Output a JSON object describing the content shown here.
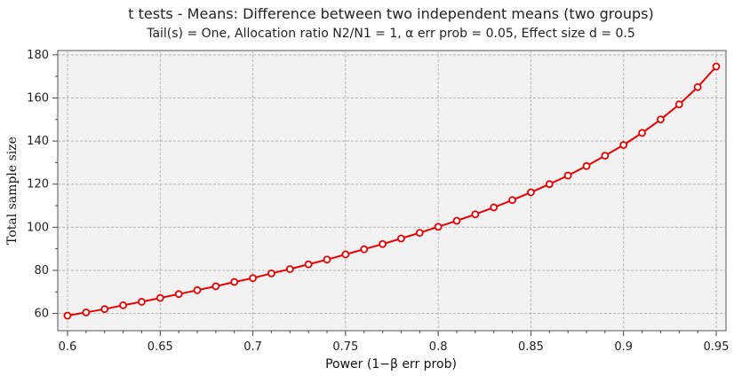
{
  "chart_data": {
    "type": "line",
    "title": "t tests - Means: Difference between two independent means (two groups)",
    "subtitle": "Tail(s) = One, Allocation ratio N2/N1 = 1, α err prob = 0.05, Effect size d = 0.5",
    "xlabel": "Power (1−β err prob)",
    "ylabel": "Total sample size",
    "xlim": [
      0.6,
      0.95
    ],
    "ylim": [
      52,
      182
    ],
    "x_ticks": [
      0.6,
      0.65,
      0.7,
      0.75,
      0.8,
      0.85,
      0.9,
      0.95
    ],
    "x_tick_labels": [
      "0.6",
      "0.65",
      "0.7",
      "0.75",
      "0.8",
      "0.85",
      "0.9",
      "0.95"
    ],
    "y_ticks": [
      60,
      80,
      100,
      120,
      140,
      160,
      180
    ],
    "y_tick_labels": [
      "60",
      "80",
      "100",
      "120",
      "140",
      "160",
      "180"
    ],
    "grid": true,
    "line_color": "#e80000",
    "series": [
      {
        "x": [
          0.6,
          0.61,
          0.62,
          0.63,
          0.64,
          0.65,
          0.66,
          0.67,
          0.68,
          0.69,
          0.7,
          0.71,
          0.72,
          0.73,
          0.74,
          0.75,
          0.76,
          0.77,
          0.78,
          0.79,
          0.8,
          0.81,
          0.82,
          0.83,
          0.84,
          0.85,
          0.86,
          0.87,
          0.88,
          0.89,
          0.9,
          0.91,
          0.92,
          0.93,
          0.94,
          0.95
        ],
        "values": [
          59,
          60.5,
          62,
          63.8,
          65.4,
          67.2,
          69,
          70.8,
          72.6,
          74.6,
          76.4,
          78.6,
          80.6,
          82.8,
          85,
          87.4,
          89.8,
          92.2,
          94.8,
          97.4,
          100.2,
          103,
          106,
          109.2,
          112.6,
          116.2,
          120,
          124,
          128.4,
          133.2,
          138.2,
          143.8,
          150,
          157,
          165,
          174.6
        ]
      }
    ]
  }
}
